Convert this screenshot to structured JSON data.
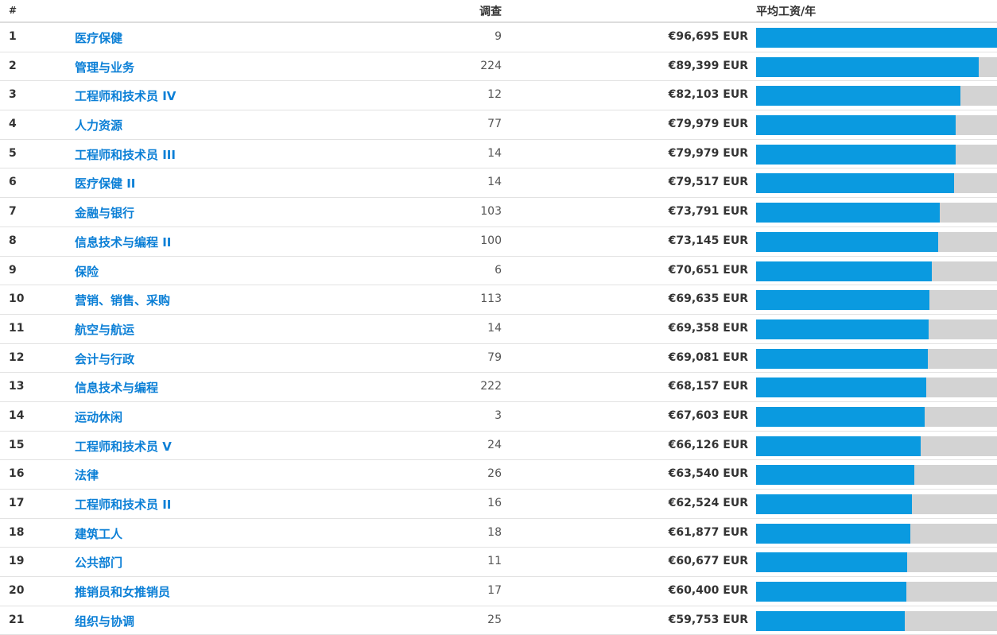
{
  "header": {
    "col_rank": "#",
    "col_surveys": "调查",
    "col_salary": "平均工资/年"
  },
  "colors": {
    "bar_fill": "#0a9ae0",
    "bar_track": "#d3d3d3",
    "link": "#0b7fd6"
  },
  "max_salary": 96695,
  "rows": [
    {
      "rank": "1",
      "job": "医疗保健",
      "surveys": "9",
      "salary": "€96,695 EUR",
      "value": 96695
    },
    {
      "rank": "2",
      "job": "管理与业务",
      "surveys": "224",
      "salary": "€89,399 EUR",
      "value": 89399
    },
    {
      "rank": "3",
      "job": "工程师和技术员 IV",
      "surveys": "12",
      "salary": "€82,103 EUR",
      "value": 82103
    },
    {
      "rank": "4",
      "job": "人力资源",
      "surveys": "77",
      "salary": "€79,979 EUR",
      "value": 79979
    },
    {
      "rank": "5",
      "job": "工程师和技术员 III",
      "surveys": "14",
      "salary": "€79,979 EUR",
      "value": 79979
    },
    {
      "rank": "6",
      "job": "医疗保健 II",
      "surveys": "14",
      "salary": "€79,517 EUR",
      "value": 79517
    },
    {
      "rank": "7",
      "job": "金融与银行",
      "surveys": "103",
      "salary": "€73,791 EUR",
      "value": 73791
    },
    {
      "rank": "8",
      "job": "信息技术与编程 II",
      "surveys": "100",
      "salary": "€73,145 EUR",
      "value": 73145
    },
    {
      "rank": "9",
      "job": "保险",
      "surveys": "6",
      "salary": "€70,651 EUR",
      "value": 70651
    },
    {
      "rank": "10",
      "job": "营销、销售、采购",
      "surveys": "113",
      "salary": "€69,635 EUR",
      "value": 69635
    },
    {
      "rank": "11",
      "job": "航空与航运",
      "surveys": "14",
      "salary": "€69,358 EUR",
      "value": 69358
    },
    {
      "rank": "12",
      "job": "会计与行政",
      "surveys": "79",
      "salary": "€69,081 EUR",
      "value": 69081
    },
    {
      "rank": "13",
      "job": "信息技术与编程",
      "surveys": "222",
      "salary": "€68,157 EUR",
      "value": 68157
    },
    {
      "rank": "14",
      "job": "运动休闲",
      "surveys": "3",
      "salary": "€67,603 EUR",
      "value": 67603
    },
    {
      "rank": "15",
      "job": "工程师和技术员 V",
      "surveys": "24",
      "salary": "€66,126 EUR",
      "value": 66126
    },
    {
      "rank": "16",
      "job": "法律",
      "surveys": "26",
      "salary": "€63,540 EUR",
      "value": 63540
    },
    {
      "rank": "17",
      "job": "工程师和技术员 II",
      "surveys": "16",
      "salary": "€62,524 EUR",
      "value": 62524
    },
    {
      "rank": "18",
      "job": "建筑工人",
      "surveys": "18",
      "salary": "€61,877 EUR",
      "value": 61877
    },
    {
      "rank": "19",
      "job": "公共部门",
      "surveys": "11",
      "salary": "€60,677 EUR",
      "value": 60677
    },
    {
      "rank": "20",
      "job": "推销员和女推销员",
      "surveys": "17",
      "salary": "€60,400 EUR",
      "value": 60400
    },
    {
      "rank": "21",
      "job": "组织与协调",
      "surveys": "25",
      "salary": "€59,753 EUR",
      "value": 59753
    }
  ]
}
